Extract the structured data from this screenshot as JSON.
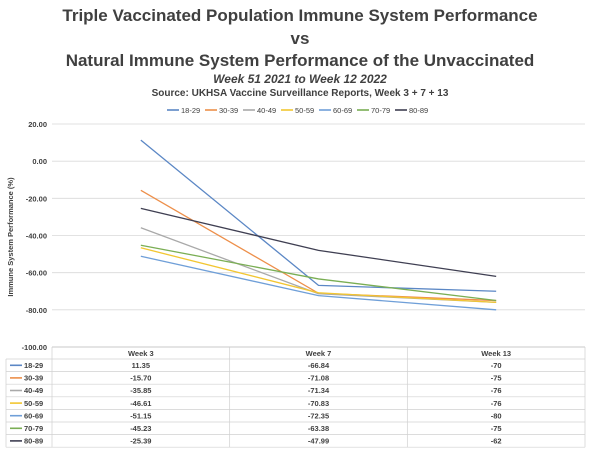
{
  "chart_data": {
    "type": "line",
    "title": "Triple Vaccinated Population Immune System Performance",
    "title_line2": "vs",
    "title_line3": "Natural Immune System Performance of the Unvaccinated",
    "subtitle": "Week 51 2021 to Week 12 2022",
    "source": "Source: UKHSA Vaccine Surveillance Reports, Week 3 + 7 + 13",
    "ylabel": "Immune System Performance (%)",
    "xlabel": "",
    "ylim": [
      -100,
      20
    ],
    "yticks": [
      "20.00",
      "0.00",
      "-20.00",
      "-40.00",
      "-60.00",
      "-80.00",
      "-100.00"
    ],
    "ytick_values": [
      20,
      0,
      -20,
      -40,
      -60,
      -80,
      -100
    ],
    "categories": [
      "Week 3",
      "Week 7",
      "Week 13"
    ],
    "grid": true,
    "legend_position": "top",
    "series": [
      {
        "name": "18-29",
        "color": "#5b87c5",
        "values": [
          11.35,
          -66.84,
          -70
        ],
        "labels": [
          "11.35",
          "-66.84",
          "-70"
        ]
      },
      {
        "name": "30-39",
        "color": "#ed8f4a",
        "values": [
          -15.7,
          -71.08,
          -75
        ],
        "labels": [
          "-15.70",
          "-71.08",
          "-75"
        ]
      },
      {
        "name": "40-49",
        "color": "#a9a9a9",
        "values": [
          -35.85,
          -71.34,
          -76
        ],
        "labels": [
          "-35.85",
          "-71.34",
          "-76"
        ]
      },
      {
        "name": "50-59",
        "color": "#f2c631",
        "values": [
          -46.61,
          -70.83,
          -76
        ],
        "labels": [
          "-46.61",
          "-70.83",
          "-76"
        ]
      },
      {
        "name": "60-69",
        "color": "#6f9fd8",
        "values": [
          -51.15,
          -72.35,
          -80
        ],
        "labels": [
          "-51.15",
          "-72.35",
          "-80"
        ]
      },
      {
        "name": "70-79",
        "color": "#7aae54",
        "values": [
          -45.23,
          -63.38,
          -75
        ],
        "labels": [
          "-45.23",
          "-63.38",
          "-75"
        ]
      },
      {
        "name": "80-89",
        "color": "#3f3f52",
        "values": [
          -25.39,
          -47.99,
          -62
        ],
        "labels": [
          "-25.39",
          "-47.99",
          "-62"
        ]
      }
    ]
  }
}
